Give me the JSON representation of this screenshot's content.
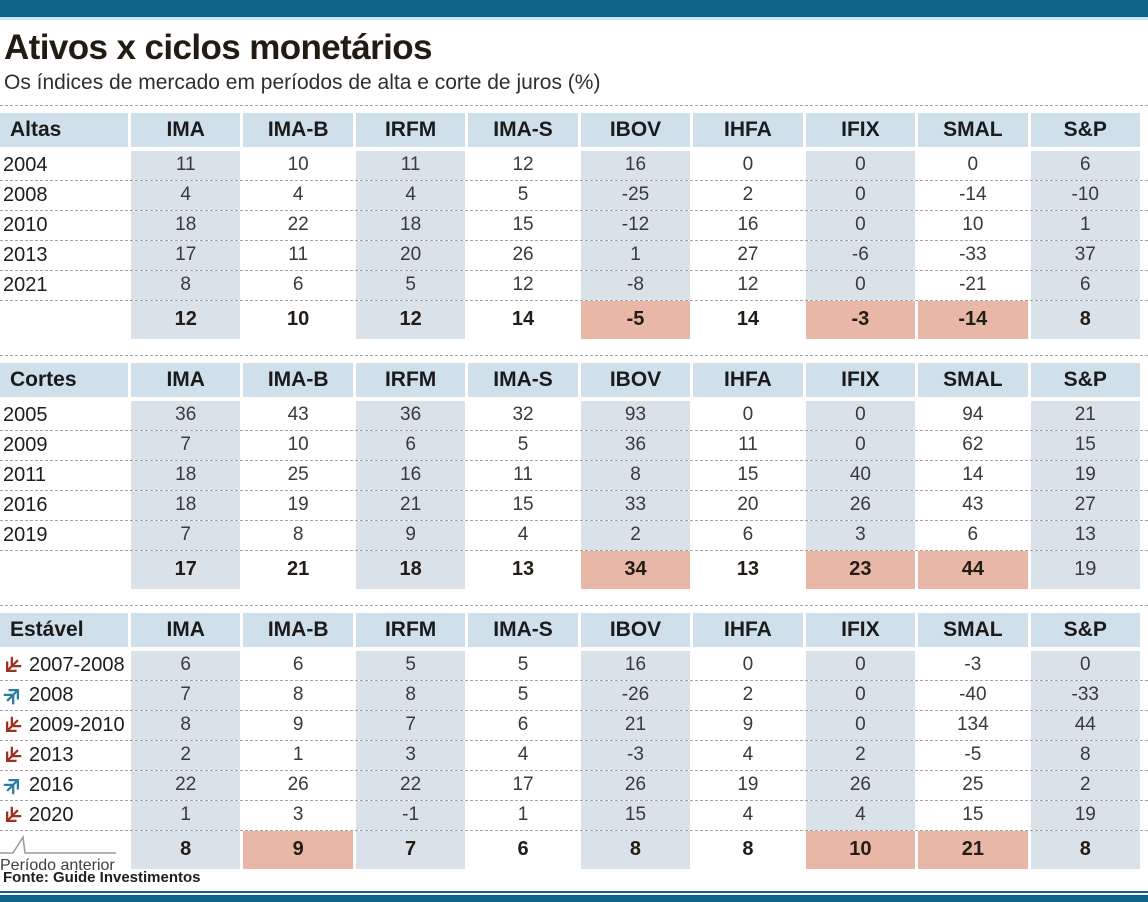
{
  "page": {
    "title": "Ativos x ciclos monetários",
    "subtitle": "Os índices de mercado em períodos de alta e corte de juros (%)",
    "source": "Fonte: Guide Investimentos",
    "period_note": "Período anterior"
  },
  "colors": {
    "bar_teal": "#0c6287",
    "header_bg": "#cfe0ea",
    "stripe_bg": "#d9e2e8",
    "highlight_bg": "#e9b7a5",
    "arrow_down": "#9e3123",
    "arrow_up": "#2d7ca1",
    "dash_gray": "#a5a5a5"
  },
  "chart_data": {
    "type": "table",
    "columns": [
      "IMA",
      "IMA-B",
      "IRFM",
      "IMA-S",
      "IBOV",
      "IHFA",
      "IFIX",
      "SMAL",
      "S&P"
    ],
    "shaded_column_indexes": [
      0,
      2,
      4,
      6,
      8
    ],
    "tables": [
      {
        "id": "altas",
        "label": "Altas",
        "rows": [
          {
            "label": "2004",
            "values": [
              11,
              10,
              11,
              12,
              16,
              0,
              0,
              0,
              6
            ]
          },
          {
            "label": "2008",
            "values": [
              4,
              4,
              4,
              5,
              -25,
              2,
              0,
              -14,
              -10
            ]
          },
          {
            "label": "2010",
            "values": [
              18,
              22,
              18,
              15,
              -12,
              16,
              0,
              10,
              1
            ]
          },
          {
            "label": "2013",
            "values": [
              17,
              11,
              20,
              26,
              1,
              27,
              -6,
              -33,
              37
            ]
          },
          {
            "label": "2021",
            "values": [
              8,
              6,
              5,
              12,
              -8,
              12,
              0,
              -21,
              6
            ]
          }
        ],
        "summary": {
          "values": [
            12,
            10,
            12,
            14,
            -5,
            14,
            -3,
            -14,
            8
          ],
          "highlight_cols": [
            4,
            6,
            7
          ],
          "regular_cols": []
        }
      },
      {
        "id": "cortes",
        "label": "Cortes",
        "rows": [
          {
            "label": "2005",
            "values": [
              36,
              43,
              36,
              32,
              93,
              0,
              0,
              94,
              21
            ]
          },
          {
            "label": "2009",
            "values": [
              7,
              10,
              6,
              5,
              36,
              11,
              0,
              62,
              15
            ]
          },
          {
            "label": "2011",
            "values": [
              18,
              25,
              16,
              11,
              8,
              15,
              40,
              14,
              19
            ]
          },
          {
            "label": "2016",
            "values": [
              18,
              19,
              21,
              15,
              33,
              20,
              26,
              43,
              27
            ]
          },
          {
            "label": "2019",
            "values": [
              7,
              8,
              9,
              4,
              2,
              6,
              3,
              6,
              13
            ]
          }
        ],
        "summary": {
          "values": [
            17,
            21,
            18,
            13,
            34,
            13,
            23,
            44,
            19
          ],
          "highlight_cols": [
            4,
            6,
            7
          ],
          "regular_cols": [
            8
          ]
        }
      },
      {
        "id": "estavel",
        "label": "Estável",
        "rows": [
          {
            "label": "2007-2008",
            "arrow": "down",
            "values": [
              6,
              6,
              5,
              5,
              16,
              0,
              0,
              -3,
              0
            ]
          },
          {
            "label": "2008",
            "arrow": "up",
            "values": [
              7,
              8,
              8,
              5,
              -26,
              2,
              0,
              -40,
              -33
            ]
          },
          {
            "label": "2009-2010",
            "arrow": "down",
            "values": [
              8,
              9,
              7,
              6,
              21,
              9,
              0,
              134,
              44
            ]
          },
          {
            "label": "2013",
            "arrow": "down",
            "values": [
              2,
              1,
              3,
              4,
              -3,
              4,
              2,
              -5,
              8
            ]
          },
          {
            "label": "2016",
            "arrow": "up",
            "values": [
              22,
              26,
              22,
              17,
              26,
              19,
              26,
              25,
              2
            ]
          },
          {
            "label": "2020",
            "arrow": "down",
            "values": [
              1,
              3,
              -1,
              1,
              15,
              4,
              4,
              15,
              19
            ]
          }
        ],
        "summary": {
          "values": [
            8,
            9,
            7,
            6,
            8,
            8,
            10,
            21,
            8
          ],
          "highlight_cols": [
            1,
            6,
            7
          ],
          "regular_cols": []
        }
      }
    ]
  }
}
